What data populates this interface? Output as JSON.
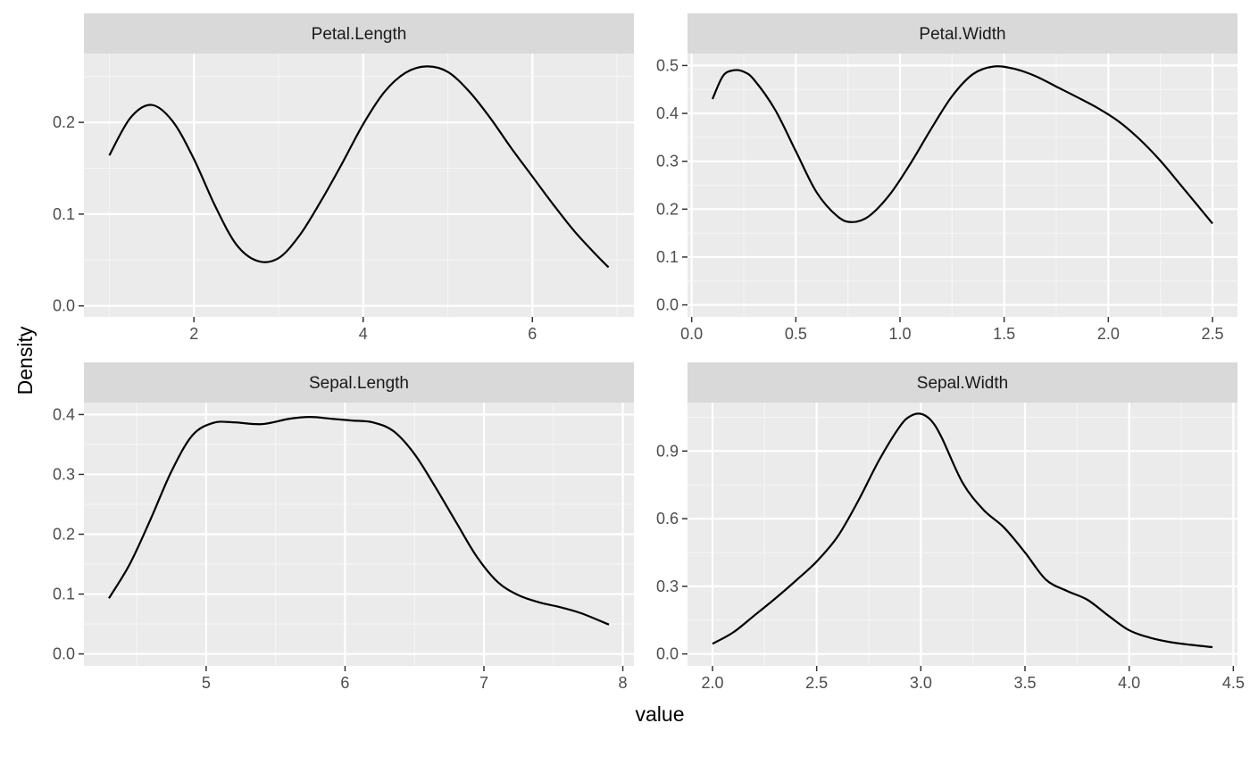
{
  "figure": {
    "xlabel": "value",
    "ylabel": "Density"
  },
  "colors": {
    "panel_bg": "#ebebeb",
    "strip_bg": "#d9d9d9",
    "grid_major": "#ffffff",
    "grid_minor": "#f5f5f5",
    "line": "#000000",
    "tick_text": "#4d4d4d"
  },
  "chart_data": [
    {
      "type": "line",
      "title": "Petal.Length",
      "xlim": [
        0.7,
        7.2
      ],
      "ylim": [
        -0.012,
        0.275
      ],
      "xticks": [
        2,
        4,
        6
      ],
      "xtick_labels": [
        "2",
        "4",
        "6"
      ],
      "yticks": [
        0.0,
        0.1,
        0.2
      ],
      "ytick_labels": [
        "0.0",
        "0.1",
        "0.2"
      ],
      "series": [
        {
          "x": [
            1.0,
            1.25,
            1.5,
            1.75,
            2.0,
            2.25,
            2.5,
            2.75,
            3.0,
            3.25,
            3.5,
            3.75,
            4.0,
            4.25,
            4.5,
            4.75,
            5.0,
            5.25,
            5.5,
            5.75,
            6.0,
            6.25,
            6.5,
            6.75,
            6.9
          ],
          "y": [
            0.164,
            0.205,
            0.219,
            0.201,
            0.16,
            0.109,
            0.067,
            0.049,
            0.052,
            0.077,
            0.114,
            0.155,
            0.198,
            0.233,
            0.254,
            0.261,
            0.255,
            0.234,
            0.205,
            0.172,
            0.141,
            0.11,
            0.081,
            0.056,
            0.042
          ]
        }
      ]
    },
    {
      "type": "line",
      "title": "Petal.Width",
      "xlim": [
        -0.02,
        2.62
      ],
      "ylim": [
        -0.025,
        0.525
      ],
      "xticks": [
        0.0,
        0.5,
        1.0,
        1.5,
        2.0,
        2.5
      ],
      "xtick_labels": [
        "0.0",
        "0.5",
        "1.0",
        "1.5",
        "2.0",
        "2.5"
      ],
      "yticks": [
        0.0,
        0.1,
        0.2,
        0.3,
        0.4,
        0.5
      ],
      "ytick_labels": [
        "0.0",
        "0.1",
        "0.2",
        "0.3",
        "0.4",
        "0.5"
      ],
      "series": [
        {
          "x": [
            0.1,
            0.15,
            0.2,
            0.25,
            0.3,
            0.4,
            0.5,
            0.6,
            0.7,
            0.77,
            0.85,
            0.95,
            1.05,
            1.15,
            1.25,
            1.35,
            1.45,
            1.55,
            1.65,
            1.75,
            1.85,
            1.95,
            2.05,
            2.15,
            2.25,
            2.35,
            2.5
          ],
          "y": [
            0.43,
            0.478,
            0.49,
            0.487,
            0.47,
            0.408,
            0.321,
            0.235,
            0.185,
            0.173,
            0.185,
            0.23,
            0.295,
            0.368,
            0.436,
            0.482,
            0.498,
            0.493,
            0.478,
            0.456,
            0.434,
            0.411,
            0.383,
            0.346,
            0.301,
            0.249,
            0.17
          ]
        }
      ]
    },
    {
      "type": "line",
      "title": "Sepal.Length",
      "xlim": [
        4.12,
        8.08
      ],
      "ylim": [
        -0.02,
        0.42
      ],
      "xticks": [
        5,
        6,
        7,
        8
      ],
      "xtick_labels": [
        "5",
        "6",
        "7",
        "8"
      ],
      "yticks": [
        0.0,
        0.1,
        0.2,
        0.3,
        0.4
      ],
      "ytick_labels": [
        "0.0",
        "0.1",
        "0.2",
        "0.3",
        "0.4"
      ],
      "series": [
        {
          "x": [
            4.3,
            4.45,
            4.6,
            4.75,
            4.9,
            5.05,
            5.2,
            5.4,
            5.6,
            5.75,
            5.9,
            6.05,
            6.2,
            6.35,
            6.5,
            6.65,
            6.8,
            6.95,
            7.1,
            7.25,
            7.4,
            7.55,
            7.7,
            7.9
          ],
          "y": [
            0.093,
            0.15,
            0.225,
            0.305,
            0.365,
            0.386,
            0.387,
            0.384,
            0.393,
            0.396,
            0.393,
            0.39,
            0.387,
            0.372,
            0.334,
            0.279,
            0.22,
            0.162,
            0.12,
            0.098,
            0.086,
            0.078,
            0.068,
            0.049
          ]
        }
      ]
    },
    {
      "type": "line",
      "title": "Sepal.Width",
      "xlim": [
        1.88,
        4.52
      ],
      "ylim": [
        -0.053,
        1.115
      ],
      "xticks": [
        2.0,
        2.5,
        3.0,
        3.5,
        4.0,
        4.5
      ],
      "xtick_labels": [
        "2.0",
        "2.5",
        "3.0",
        "3.5",
        "4.0",
        "4.5"
      ],
      "yticks": [
        0.0,
        0.3,
        0.6,
        0.9
      ],
      "ytick_labels": [
        "0.0",
        "0.3",
        "0.6",
        "0.9"
      ],
      "series": [
        {
          "x": [
            2.0,
            2.1,
            2.2,
            2.3,
            2.4,
            2.5,
            2.6,
            2.7,
            2.8,
            2.9,
            2.95,
            3.0,
            3.05,
            3.1,
            3.2,
            3.3,
            3.4,
            3.5,
            3.6,
            3.7,
            3.8,
            3.9,
            4.0,
            4.1,
            4.2,
            4.3,
            4.4
          ],
          "y": [
            0.045,
            0.096,
            0.17,
            0.245,
            0.325,
            0.41,
            0.52,
            0.68,
            0.86,
            1.01,
            1.055,
            1.065,
            1.035,
            0.96,
            0.76,
            0.64,
            0.56,
            0.45,
            0.33,
            0.28,
            0.24,
            0.17,
            0.105,
            0.072,
            0.052,
            0.04,
            0.03
          ]
        }
      ]
    }
  ]
}
